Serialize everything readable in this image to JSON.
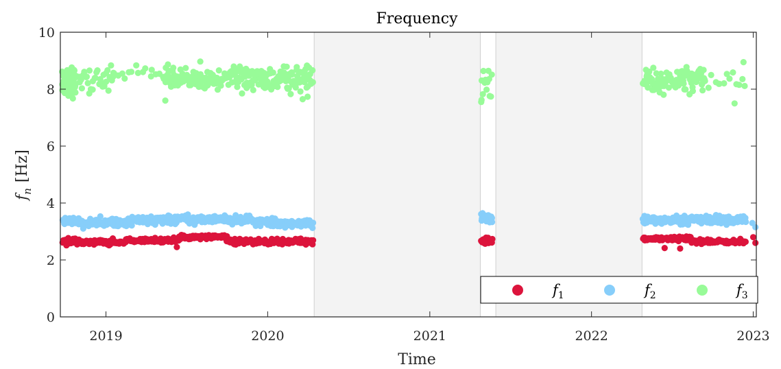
{
  "chart_data": {
    "type": "scatter",
    "title": "Frequency",
    "xlabel": "Time",
    "ylabel_symbol": "f",
    "ylabel_subscript": "n",
    "ylabel_unit": "[Hz]",
    "xlim": [
      "2018-09-20",
      "2023-01-08"
    ],
    "ylim": [
      0,
      10
    ],
    "x_ticks": [
      "2019-01-01",
      "2020-01-01",
      "2021-01-01",
      "2022-01-01",
      "2023-01-01"
    ],
    "x_tick_labels": [
      "2019",
      "2020",
      "2021",
      "2022",
      "2023"
    ],
    "y_ticks": [
      0,
      2,
      4,
      6,
      8,
      10
    ],
    "y_tick_labels": [
      "0",
      "2",
      "4",
      "6",
      "8",
      "10"
    ],
    "grid": false,
    "legend_position": "bottom-right",
    "shaded_periods": [
      {
        "start": "2020-04-15",
        "end": "2021-04-25"
      },
      {
        "start": "2021-05-30",
        "end": "2022-04-25"
      }
    ],
    "series": [
      {
        "name": "f1",
        "label_symbol": "f",
        "label_subscript": "1",
        "color": "#DC143C",
        "clusters": [
          {
            "start": "2018-09-25",
            "end": "2018-10-31",
            "center": 2.65,
            "spread": 0.09,
            "step_days": 1.2
          },
          {
            "start": "2018-10-31",
            "end": "2019-02-15",
            "center": 2.63,
            "spread": 0.08,
            "step_days": 1.5
          },
          {
            "start": "2019-02-15",
            "end": "2019-06-15",
            "center": 2.68,
            "spread": 0.07,
            "step_days": 1.5
          },
          {
            "start": "2019-06-15",
            "end": "2019-10-01",
            "center": 2.8,
            "spread": 0.07,
            "step_days": 1.5
          },
          {
            "start": "2019-10-01",
            "end": "2020-04-13",
            "center": 2.64,
            "spread": 0.09,
            "step_days": 1.2
          },
          {
            "start": "2021-04-27",
            "end": "2021-05-22",
            "center": 2.68,
            "spread": 0.12,
            "step_days": 1.0
          },
          {
            "start": "2022-04-27",
            "end": "2022-08-15",
            "center": 2.75,
            "spread": 0.08,
            "step_days": 1.3
          },
          {
            "start": "2022-08-15",
            "end": "2022-12-15",
            "center": 2.64,
            "spread": 0.07,
            "step_days": 1.5
          }
        ],
        "extra_points": [
          {
            "x": "2019-06-10",
            "y": 2.45
          },
          {
            "x": "2022-06-15",
            "y": 2.42
          },
          {
            "x": "2022-07-20",
            "y": 2.4
          },
          {
            "x": "2023-01-01",
            "y": 2.8
          },
          {
            "x": "2023-01-06",
            "y": 2.6
          }
        ]
      },
      {
        "name": "f2",
        "label_symbol": "f",
        "label_subscript": "2",
        "color": "#87CEFA",
        "clusters": [
          {
            "start": "2018-09-25",
            "end": "2018-10-31",
            "center": 3.35,
            "spread": 0.13,
            "step_days": 1.0
          },
          {
            "start": "2018-10-31",
            "end": "2019-03-01",
            "center": 3.32,
            "spread": 0.14,
            "step_days": 1.2
          },
          {
            "start": "2019-03-01",
            "end": "2019-11-30",
            "center": 3.42,
            "spread": 0.12,
            "step_days": 1.1
          },
          {
            "start": "2019-11-30",
            "end": "2020-04-13",
            "center": 3.3,
            "spread": 0.13,
            "step_days": 1.2
          },
          {
            "start": "2021-04-27",
            "end": "2021-05-22",
            "center": 3.45,
            "spread": 0.14,
            "step_days": 0.8
          },
          {
            "start": "2022-04-27",
            "end": "2022-12-15",
            "center": 3.4,
            "spread": 0.13,
            "step_days": 1.0
          }
        ],
        "extra_points": [
          {
            "x": "2022-12-30",
            "y": 3.3
          },
          {
            "x": "2023-01-06",
            "y": 3.15
          }
        ]
      },
      {
        "name": "f3",
        "label_symbol": "f",
        "label_subscript": "3",
        "color": "#98FB98",
        "clusters": [
          {
            "start": "2018-09-24",
            "end": "2018-10-25",
            "center": 8.25,
            "spread": 0.42,
            "step_days": 0.45
          },
          {
            "start": "2018-11-01",
            "end": "2019-01-20",
            "center": 8.4,
            "spread": 0.4,
            "step_days": 2.5
          },
          {
            "start": "2019-01-20",
            "end": "2019-05-10",
            "center": 8.55,
            "spread": 0.35,
            "step_days": 8.0
          },
          {
            "start": "2019-05-10",
            "end": "2019-10-15",
            "center": 8.35,
            "spread": 0.35,
            "step_days": 1.6
          },
          {
            "start": "2019-10-15",
            "end": "2020-04-13",
            "center": 8.35,
            "spread": 0.45,
            "step_days": 1.2
          },
          {
            "start": "2021-04-27",
            "end": "2021-05-22",
            "center": 8.2,
            "spread": 0.5,
            "step_days": 2.0
          },
          {
            "start": "2022-04-27",
            "end": "2022-09-15",
            "center": 8.3,
            "spread": 0.4,
            "step_days": 1.4
          },
          {
            "start": "2022-09-15",
            "end": "2022-12-20",
            "center": 8.3,
            "spread": 0.4,
            "step_days": 7.0
          }
        ],
        "extra_points": [
          {
            "x": "2019-05-15",
            "y": 7.6
          },
          {
            "x": "2021-04-27",
            "y": 7.55
          },
          {
            "x": "2022-11-20",
            "y": 7.5
          },
          {
            "x": "2022-12-10",
            "y": 8.95
          }
        ]
      }
    ]
  }
}
